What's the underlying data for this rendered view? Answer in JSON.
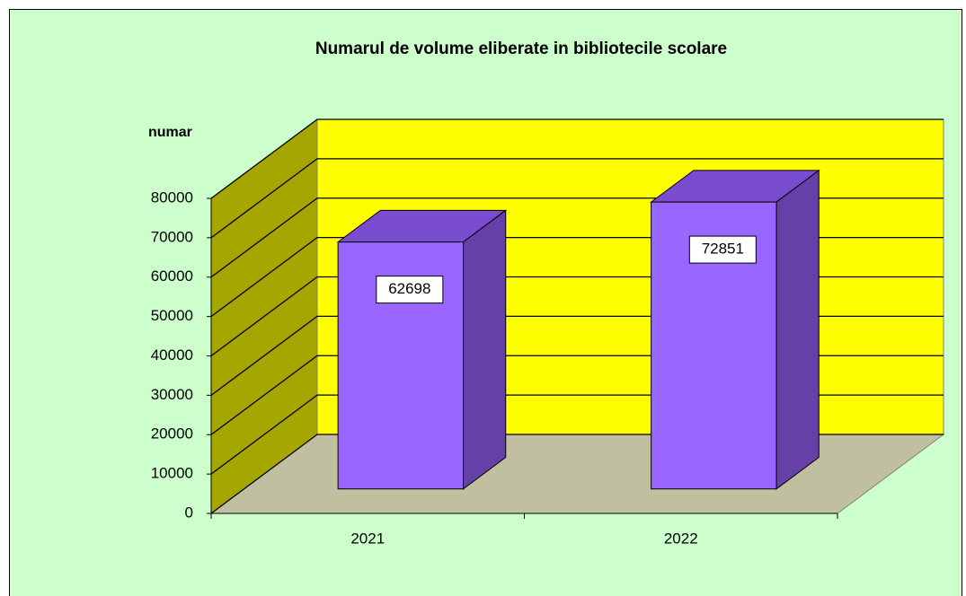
{
  "chart_data": {
    "type": "bar3d",
    "title": "Numarul  de  volume eliberate in bibliotecile scolare",
    "y_label": "numar",
    "categories": [
      "2021",
      "2022"
    ],
    "values": [
      62698,
      72851
    ],
    "color": "#9966ff",
    "ylim": [
      0,
      80000
    ],
    "yticks": [
      0,
      10000,
      20000,
      30000,
      40000,
      50000,
      60000,
      70000,
      80000
    ],
    "grid": true
  }
}
